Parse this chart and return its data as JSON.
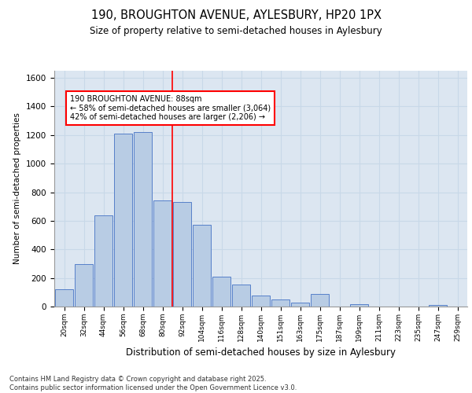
{
  "title1": "190, BROUGHTON AVENUE, AYLESBURY, HP20 1PX",
  "title2": "Size of property relative to semi-detached houses in Aylesbury",
  "xlabel": "Distribution of semi-detached houses by size in Aylesbury",
  "ylabel": "Number of semi-detached properties",
  "footnote": "Contains HM Land Registry data © Crown copyright and database right 2025.\nContains public sector information licensed under the Open Government Licence v3.0.",
  "bar_labels": [
    "20sqm",
    "32sqm",
    "44sqm",
    "56sqm",
    "68sqm",
    "80sqm",
    "92sqm",
    "104sqm",
    "116sqm",
    "128sqm",
    "140sqm",
    "151sqm",
    "163sqm",
    "175sqm",
    "187sqm",
    "199sqm",
    "211sqm",
    "223sqm",
    "235sqm",
    "247sqm",
    "259sqm"
  ],
  "bar_values": [
    120,
    295,
    640,
    1210,
    1220,
    740,
    730,
    570,
    210,
    155,
    75,
    50,
    25,
    90,
    0,
    15,
    0,
    0,
    0,
    10,
    0
  ],
  "bar_color": "#b8cce4",
  "bar_edge_color": "#4472c4",
  "grid_color": "#c8d8e8",
  "background_color": "#dce6f1",
  "vline_x": 5.5,
  "vline_color": "red",
  "property_label": "190 BROUGHTON AVENUE: 88sqm",
  "smaller_pct": "58%",
  "smaller_count": "3,064",
  "larger_pct": "42%",
  "larger_count": "2,206",
  "annotation_box_color": "white",
  "annotation_box_edge": "red",
  "ylim": [
    0,
    1650
  ],
  "yticks": [
    0,
    200,
    400,
    600,
    800,
    1000,
    1200,
    1400,
    1600
  ]
}
